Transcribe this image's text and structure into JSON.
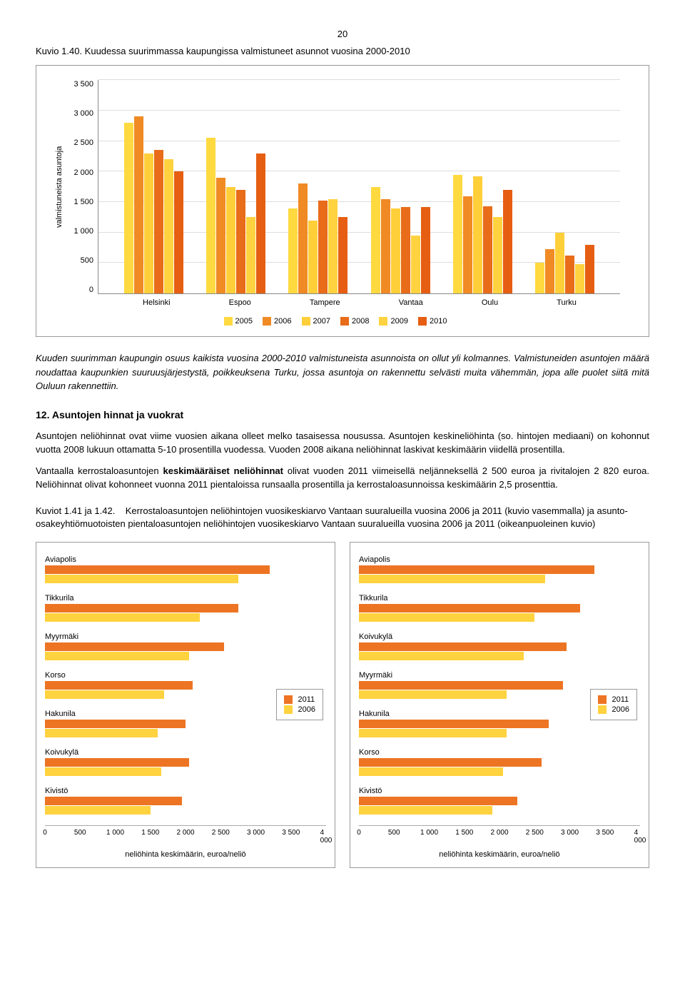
{
  "page_number": "20",
  "caption1_prefix": "Kuvio 1.40.",
  "caption1_text": "Kuudessa suurimmassa kaupungissa valmistuneet asunnot vuosina 2000-2010",
  "chart1": {
    "y_label": "valmistuneista asuntoja",
    "y_ticks": [
      "3 500",
      "3 000",
      "2 500",
      "2 000",
      "1 500",
      "1 000",
      "500",
      "0"
    ],
    "y_max": 3500,
    "categories": [
      "Helsinki",
      "Espoo",
      "Tampere",
      "Vantaa",
      "Oulu",
      "Turku"
    ],
    "series": [
      "2005",
      "2006",
      "2007",
      "2008",
      "2009",
      "2010"
    ],
    "colors": [
      "#ffd940",
      "#f08a24",
      "#ffcf3a",
      "#e86c1a",
      "#ffd23f",
      "#e65e12"
    ],
    "data": {
      "Helsinki": [
        2800,
        2900,
        2300,
        2350,
        2200,
        2000
      ],
      "Espoo": [
        2550,
        1900,
        1750,
        1700,
        1250,
        2300
      ],
      "Tampere": [
        1400,
        1800,
        1200,
        1520,
        1550,
        1250
      ],
      "Vantaa": [
        1750,
        1550,
        1400,
        1420,
        950,
        1420
      ],
      "Oulu": [
        1950,
        1600,
        1920,
        1430,
        1250,
        1700
      ],
      "Turku": [
        500,
        730,
        1000,
        620,
        480,
        800
      ]
    }
  },
  "italic_para": "Kuuden suurimman kaupungin osuus kaikista vuosina 2000-2010 valmistuneista asunnoista on ollut yli kolmannes. Valmistuneiden asuntojen määrä noudattaa kaupunkien suuruusjärjestystä, poikkeuksena Turku, jossa asuntoja on rakennettu selvästi muita vähemmän, jopa alle puolet siitä mitä Ouluun rakennettiin.",
  "section_heading": "12. Asuntojen hinnat ja vuokrat",
  "para1": "Asuntojen neliöhinnat ovat viime vuosien aikana olleet melko tasaisessa nousussa. Asuntojen keskineliöhinta (so. hintojen mediaani) on kohonnut vuotta 2008 lukuun ottamatta 5-10 prosentilla vuodessa. Vuoden 2008 aikana neliöhinnat laskivat keskimäärin viidellä prosentilla.",
  "para2_pre": "Vantaalla kerrostaloasuntojen ",
  "para2_bold": "keskimääräiset neliöhinnat",
  "para2_post": " olivat vuoden 2011 viimeisellä neljänneksellä 2 500 euroa ja rivitalojen 2 820 euroa. Neliöhinnat olivat kohonneet vuonna 2011 pientaloissa runsaalla prosentilla ja kerrostaloasunnoissa keskimäärin 2,5 prosenttia.",
  "caption2_prefix": "Kuviot 1.41 ja 1.42.",
  "caption2_text": "Kerrostaloasuntojen neliöhintojen vuosikeskiarvo Vantaan suuralueilla vuosina 2006 ja 2011 (kuvio vasemmalla) ja asunto-osakeyhtiömuotoisten pientaloasuntojen neliöhintojen vuosikeskiarvo Vantaan suuralueilla vuosina 2006 ja 2011 (oikeanpuoleinen kuvio)",
  "hbar_common": {
    "x_ticks": [
      "0",
      "500",
      "1 000",
      "1 500",
      "2 000",
      "2 500",
      "3 000",
      "3 500",
      "4 000"
    ],
    "x_max": 4000,
    "x_label": "neliöhinta keskimäärin, euroa/neliö",
    "series": [
      "2011",
      "2006"
    ],
    "colors": [
      "#ed7423",
      "#ffd23f"
    ]
  },
  "hbar_left": {
    "categories": [
      "Aviapolis",
      "Tikkurila",
      "Myyrmäki",
      "Korso",
      "Hakunila",
      "Koivukylä",
      "Kivistö"
    ],
    "data": {
      "Aviapolis": [
        3200,
        2750
      ],
      "Tikkurila": [
        2750,
        2200
      ],
      "Myyrmäki": [
        2550,
        2050
      ],
      "Korso": [
        2100,
        1700
      ],
      "Hakunila": [
        2000,
        1600
      ],
      "Koivukylä": [
        2050,
        1650
      ],
      "Kivistö": [
        1950,
        1500
      ]
    }
  },
  "hbar_right": {
    "categories": [
      "Aviapolis",
      "Tikkurila",
      "Koivukylä",
      "Myyrmäki",
      "Hakunila",
      "Korso",
      "Kivistö"
    ],
    "data": {
      "Aviapolis": [
        3350,
        2650
      ],
      "Tikkurila": [
        3150,
        2500
      ],
      "Koivukylä": [
        2950,
        2350
      ],
      "Myyrmäki": [
        2900,
        2100
      ],
      "Hakunila": [
        2700,
        2100
      ],
      "Korso": [
        2600,
        2050
      ],
      "Kivistö": [
        2250,
        1900
      ]
    }
  }
}
